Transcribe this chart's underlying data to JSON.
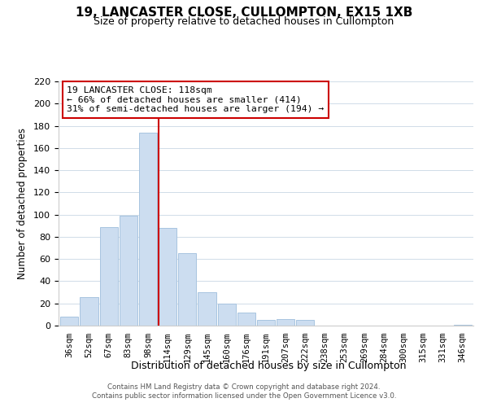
{
  "title": "19, LANCASTER CLOSE, CULLOMPTON, EX15 1XB",
  "subtitle": "Size of property relative to detached houses in Cullompton",
  "xlabel": "Distribution of detached houses by size in Cullompton",
  "ylabel": "Number of detached properties",
  "bar_labels": [
    "36sqm",
    "52sqm",
    "67sqm",
    "83sqm",
    "98sqm",
    "114sqm",
    "129sqm",
    "145sqm",
    "160sqm",
    "176sqm",
    "191sqm",
    "207sqm",
    "222sqm",
    "238sqm",
    "253sqm",
    "269sqm",
    "284sqm",
    "300sqm",
    "315sqm",
    "331sqm",
    "346sqm"
  ],
  "bar_values": [
    8,
    26,
    89,
    99,
    174,
    88,
    65,
    30,
    20,
    12,
    5,
    6,
    5,
    0,
    0,
    0,
    0,
    0,
    0,
    0,
    1
  ],
  "bar_color": "#ccddf0",
  "bar_edge_color": "#a8c4e0",
  "vline_x_index": 5,
  "vline_color": "#cc0000",
  "ylim": [
    0,
    220
  ],
  "yticks": [
    0,
    20,
    40,
    60,
    80,
    100,
    120,
    140,
    160,
    180,
    200,
    220
  ],
  "annotation_title": "19 LANCASTER CLOSE: 118sqm",
  "annotation_line1": "← 66% of detached houses are smaller (414)",
  "annotation_line2": "31% of semi-detached houses are larger (194) →",
  "annotation_box_color": "#ffffff",
  "annotation_box_edge": "#cc0000",
  "footer1": "Contains HM Land Registry data © Crown copyright and database right 2024.",
  "footer2": "Contains public sector information licensed under the Open Government Licence v3.0.",
  "background_color": "#ffffff",
  "grid_color": "#d0dce8"
}
